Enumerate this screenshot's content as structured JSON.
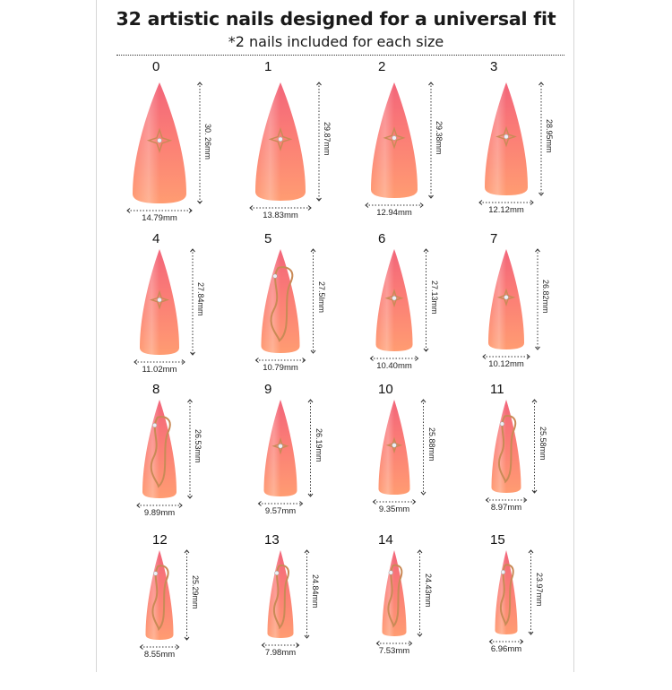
{
  "header": {
    "title": "32 artistic nails designed for a universal fit",
    "subtitle": "*2 nails included for each size"
  },
  "colors": {
    "nail_tip": "#f2657a",
    "nail_base": "#ff9c72",
    "gold": "#c98a56"
  },
  "nails": [
    {
      "size": "0",
      "length": "30. 26mm",
      "width": "14.79mm",
      "decor": "star"
    },
    {
      "size": "1",
      "length": "29.87mm",
      "width": "13.83mm",
      "decor": "star"
    },
    {
      "size": "2",
      "length": "29.38mm",
      "width": "12.94mm",
      "decor": "star"
    },
    {
      "size": "3",
      "length": "28.95mm",
      "width": "12.12mm",
      "decor": "star"
    },
    {
      "size": "4",
      "length": "27.84mm",
      "width": "11.02mm",
      "decor": "star"
    },
    {
      "size": "5",
      "length": "27.5Imm",
      "width": "10.79mm",
      "decor": "wave"
    },
    {
      "size": "6",
      "length": "27.13mm",
      "width": "10.40mm",
      "decor": "star"
    },
    {
      "size": "7",
      "length": "26.82mm",
      "width": "10.12mm",
      "decor": "star"
    },
    {
      "size": "8",
      "length": "26.53mm",
      "width": "9.89mm",
      "decor": "wave"
    },
    {
      "size": "9",
      "length": "26.19mm",
      "width": "9.57mm",
      "decor": "star"
    },
    {
      "size": "10",
      "length": "25.88mm",
      "width": "9.35mm",
      "decor": "star"
    },
    {
      "size": "11",
      "length": "25.58mm",
      "width": "8.97mm",
      "decor": "wave"
    },
    {
      "size": "12",
      "length": "25.29mm",
      "width": "8.55mm",
      "decor": "wave"
    },
    {
      "size": "13",
      "length": "24.84mm",
      "width": "7.98mm",
      "decor": "wave"
    },
    {
      "size": "14",
      "length": "24.43mm",
      "width": "7.53mm",
      "decor": "wave"
    },
    {
      "size": "15",
      "length": "23.97mm",
      "width": "6.96mm",
      "decor": "wave"
    }
  ]
}
